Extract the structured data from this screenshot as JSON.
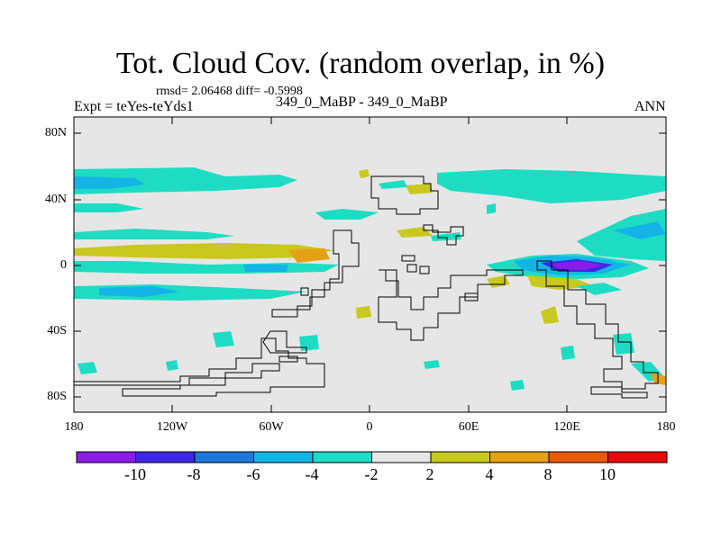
{
  "title": "Tot. Cloud Cov. (random overlap, in %)",
  "stats": "rmsd= 2.06468 diff= -0.5998",
  "left_label": "Expt = teYes-teYds1",
  "center_label": "349_0_MaBP - 349_0_MaBP",
  "right_label": "ANN",
  "lat_ticks": [
    "80N",
    "40N",
    "0",
    "40S",
    "80S"
  ],
  "lon_ticks": [
    "180",
    "120W",
    "60W",
    "0",
    "60E",
    "120E",
    "180"
  ],
  "colorbar": {
    "labels": [
      "-10",
      "-8",
      "-6",
      "-4",
      "-2",
      "2",
      "4",
      "8",
      "10"
    ],
    "colors": [
      "#8a1ee6",
      "#3c28e6",
      "#1e78dc",
      "#14b4e6",
      "#1edcc3",
      "#e6e6e6",
      "#c8c81e",
      "#e6a014",
      "#e65a0a",
      "#e60a0a"
    ]
  },
  "colors": {
    "background": "#e6e6e6",
    "frame": "#000000",
    "continents": "#000000"
  }
}
